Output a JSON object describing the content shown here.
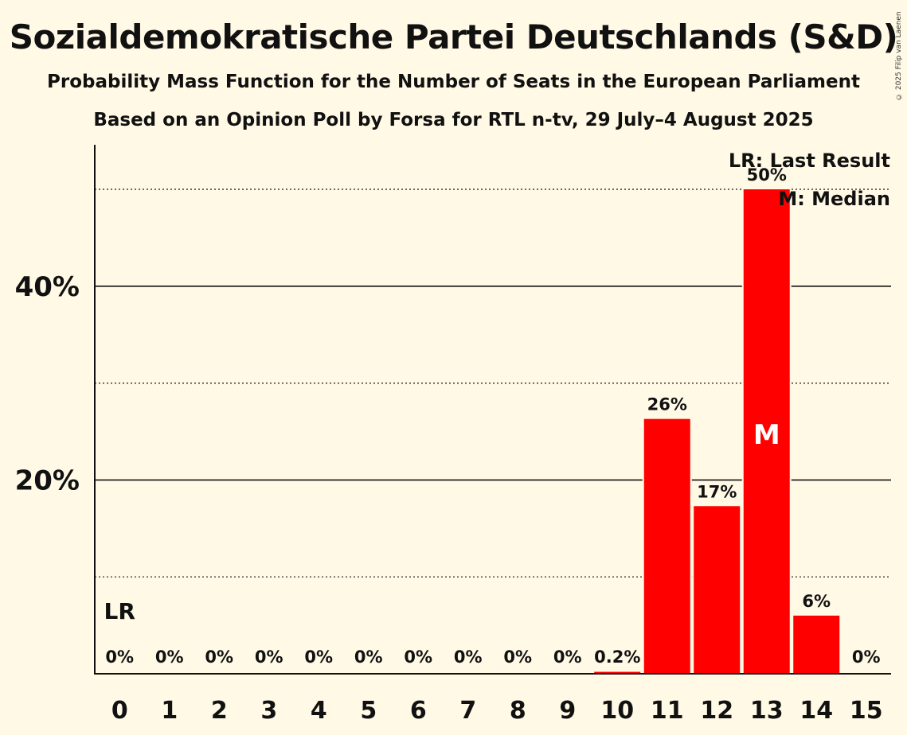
{
  "header": {
    "title": "Sozialdemokratische Partei Deutschlands (S&D)",
    "subtitle": "Probability Mass Function for the Number of Seats in the European Parliament",
    "subtitle2": "Based on an Opinion Poll by Forsa for RTL n-tv, 29 July–4 August 2025",
    "copyright": "© 2025 Filip van Laenen"
  },
  "colors": {
    "bar": "#FF0000",
    "background": "#FFF9E5",
    "text": "#111111"
  },
  "chart_data": {
    "type": "bar",
    "categories": [
      "0",
      "1",
      "2",
      "3",
      "4",
      "5",
      "6",
      "7",
      "8",
      "9",
      "10",
      "11",
      "12",
      "13",
      "14",
      "15"
    ],
    "values": [
      0,
      0,
      0,
      0,
      0,
      0,
      0,
      0,
      0,
      0,
      0.2,
      26.3,
      17.3,
      50.0,
      6.0,
      0
    ],
    "value_labels": [
      "0%",
      "0%",
      "0%",
      "0%",
      "0%",
      "0%",
      "0%",
      "0%",
      "0%",
      "0%",
      "0.2%",
      "26%",
      "17%",
      "50%",
      "6%",
      "0%"
    ],
    "y_tick_labels": [
      "20%",
      "40%"
    ],
    "y_ticks": [
      20,
      40
    ],
    "y_minor_ticks": [
      10,
      30,
      50
    ],
    "ylim": [
      0,
      54.5
    ],
    "last_result_index": 0,
    "median_index": 13,
    "last_result_marker": "LR",
    "median_marker": "M",
    "legend": [
      "LR: Last Result",
      "M: Median"
    ],
    "legend_position": "top-right"
  }
}
